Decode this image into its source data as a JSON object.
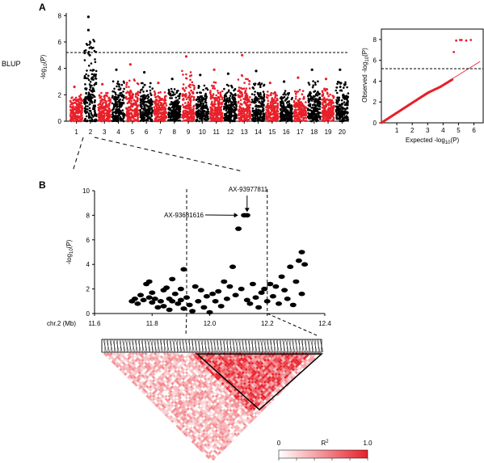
{
  "panels": {
    "a_label": "A",
    "b_label": "B",
    "row_label": "BLUP"
  },
  "chart_data": [
    {
      "id": "manhattan",
      "type": "scatter",
      "ylabel_prefix": "-log",
      "ylabel_sub": "10",
      "ylabel_suffix": "(P)",
      "yticks": [
        0,
        2,
        4,
        6,
        8
      ],
      "ylim": [
        0,
        8.2
      ],
      "threshold": 5.2,
      "chromosomes": [
        "1",
        "2",
        "3",
        "4",
        "5",
        "6",
        "7",
        "8",
        "9",
        "10",
        "11",
        "12",
        "13",
        "14",
        "15",
        "16",
        "17",
        "18",
        "19",
        "20"
      ],
      "chrom_colors": [
        "#e8202a",
        "#000000"
      ],
      "peaks": [
        2.6,
        7.9,
        2.8,
        3.9,
        4.3,
        3.7,
        2.9,
        3.2,
        4.9,
        3.5,
        3.9,
        3.6,
        5.0,
        3.8,
        2.9,
        3.0,
        3.3,
        3.9,
        3.2,
        3.9
      ],
      "grid": false,
      "legend": "none"
    },
    {
      "id": "qq",
      "type": "scatter",
      "xlabel_prefix": "Expected -log",
      "xlabel_sub": "10",
      "xlabel_suffix": "(P)",
      "ylabel_prefix": "Observed -log",
      "ylabel_sub": "10",
      "ylabel_suffix": "(P)",
      "xticks": [
        1,
        2,
        3,
        4,
        5,
        6
      ],
      "yticks": [
        0,
        2,
        4,
        6,
        8
      ],
      "xlim": [
        0,
        6.6
      ],
      "ylim": [
        0,
        9
      ],
      "threshold": 5.2,
      "outliers": [
        [
          4.85,
          7.9
        ],
        [
          5.1,
          7.95
        ],
        [
          5.2,
          7.95
        ],
        [
          5.5,
          7.9
        ],
        [
          5.8,
          7.95
        ],
        [
          4.7,
          6.8
        ]
      ],
      "grid": false,
      "legend": "none"
    },
    {
      "id": "regional",
      "type": "scatter",
      "ylabel_prefix": "-log",
      "ylabel_sub": "10",
      "ylabel_suffix": "(P)",
      "xlabel": "chr.2 (Mb)",
      "xticks": [
        11.6,
        11.8,
        12.0,
        12.2,
        12.4
      ],
      "yticks": [
        0,
        2,
        4,
        6,
        8,
        10
      ],
      "xlim": [
        11.6,
        12.4
      ],
      "ylim": [
        0,
        10
      ],
      "block": [
        11.92,
        12.2
      ],
      "points": [
        [
          11.73,
          1.0
        ],
        [
          11.74,
          1.2
        ],
        [
          11.75,
          0.8
        ],
        [
          11.76,
          1.5
        ],
        [
          11.77,
          1.1
        ],
        [
          11.78,
          2.4
        ],
        [
          11.79,
          2.6
        ],
        [
          11.79,
          1.3
        ],
        [
          11.8,
          0.9
        ],
        [
          11.8,
          1.7
        ],
        [
          11.81,
          1.2
        ],
        [
          11.82,
          0.5
        ],
        [
          11.83,
          1.0
        ],
        [
          11.84,
          1.9
        ],
        [
          11.84,
          0.6
        ],
        [
          11.85,
          2.1
        ],
        [
          11.86,
          1.2
        ],
        [
          11.86,
          0.3
        ],
        [
          11.87,
          2.8
        ],
        [
          11.87,
          1.0
        ],
        [
          11.88,
          1.6
        ],
        [
          11.89,
          0.8
        ],
        [
          11.9,
          2.0
        ],
        [
          11.9,
          1.1
        ],
        [
          11.91,
          3.6
        ],
        [
          11.91,
          0.4
        ],
        [
          11.92,
          1.3
        ],
        [
          11.93,
          0.7
        ],
        [
          11.94,
          0.2
        ],
        [
          11.95,
          2.2
        ],
        [
          11.96,
          1.0
        ],
        [
          11.97,
          1.9
        ],
        [
          11.98,
          0.5
        ],
        [
          11.99,
          1.4
        ],
        [
          12.0,
          0.1
        ],
        [
          12.01,
          1.6
        ],
        [
          12.02,
          1.0
        ],
        [
          12.03,
          1.8
        ],
        [
          12.04,
          0.6
        ],
        [
          12.05,
          2.6
        ],
        [
          12.06,
          1.2
        ],
        [
          12.07,
          2.2
        ],
        [
          12.08,
          3.8
        ],
        [
          12.09,
          1.5
        ],
        [
          12.1,
          6.9
        ],
        [
          12.11,
          2.0
        ],
        [
          12.12,
          8.0
        ],
        [
          12.13,
          8.0
        ],
        [
          12.13,
          1.1
        ],
        [
          12.14,
          0.8
        ],
        [
          12.15,
          2.4
        ],
        [
          12.16,
          1.3
        ],
        [
          12.17,
          0.5
        ],
        [
          12.18,
          1.7
        ],
        [
          12.19,
          2.0
        ],
        [
          12.2,
          1.0
        ],
        [
          12.21,
          2.4
        ],
        [
          12.22,
          1.4
        ],
        [
          12.23,
          2.2
        ],
        [
          12.24,
          0.8
        ],
        [
          12.25,
          3.0
        ],
        [
          12.26,
          1.9
        ],
        [
          12.27,
          1.2
        ],
        [
          12.28,
          3.8
        ],
        [
          12.29,
          0.7
        ],
        [
          12.3,
          2.6
        ],
        [
          12.31,
          4.3
        ],
        [
          12.32,
          5.0
        ],
        [
          12.32,
          1.6
        ],
        [
          12.33,
          4.0
        ]
      ],
      "annotations": [
        {
          "text": "AX-93977811",
          "x": 12.13,
          "y": 8.0
        },
        {
          "text": "AX-93681616",
          "x": 12.11,
          "y": 8.0
        }
      ],
      "grid": false,
      "legend": "none"
    },
    {
      "id": "ld",
      "type": "heatmap",
      "colorbar_label": "R",
      "colorbar_sup": "2",
      "colorbar_min": "0",
      "colorbar_max": "1.0",
      "colorbar_range": [
        0,
        1.0
      ],
      "colors": {
        "low": "#ffffff",
        "high": "#e8202a"
      },
      "legend": "bottom-right"
    }
  ]
}
